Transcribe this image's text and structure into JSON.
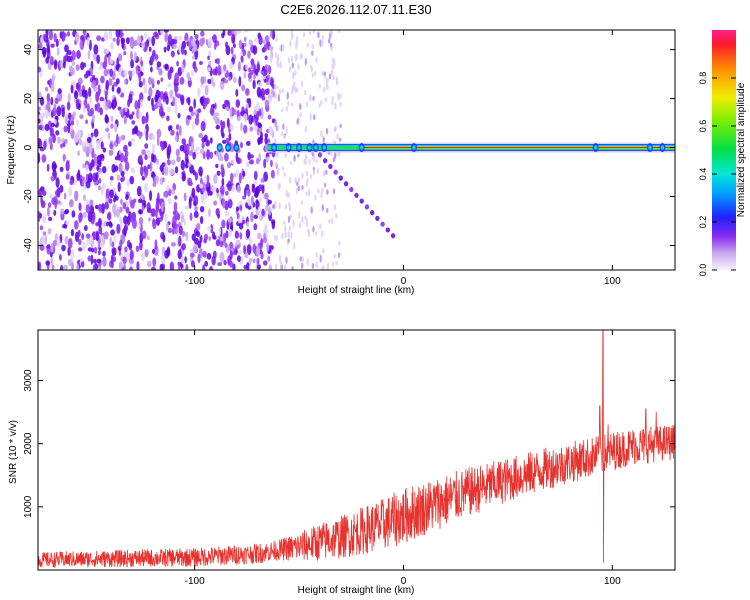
{
  "figure_title": "C2E6.2026.112.07.11.E30",
  "colors": {
    "snr_line": "#e8302c",
    "ridge_core": "#e02b1f",
    "noise_purple": "#6a10e8",
    "noise_light": "#c8a8f0"
  },
  "chart_data": [
    {
      "type": "heatmap",
      "title": "",
      "xlabel": "Height of straight line (km)",
      "ylabel": "Frequency (Hz)",
      "xlim": [
        -175,
        130
      ],
      "ylim": [
        -50,
        48
      ],
      "xticks": [
        -100,
        0,
        100
      ],
      "xtick_labels": [
        "-100",
        "0",
        "100"
      ],
      "yticks": [
        -40,
        -20,
        0,
        20,
        40
      ],
      "ytick_labels": [
        "-40",
        "-20",
        "0",
        "20",
        "40"
      ],
      "colorbar": {
        "label": "Normalized spectral amplitude",
        "range": [
          0,
          1
        ],
        "ticks": [
          0.0,
          0.2,
          0.4,
          0.6,
          0.8
        ],
        "tick_labels": [
          "0.0",
          "0.2",
          "0.4",
          "0.6",
          "0.8"
        ]
      },
      "features": [
        {
          "name": "broadband noise",
          "x_range": [
            -175,
            -62
          ],
          "freq_range": [
            -50,
            48
          ],
          "amplitude": 0.15
        },
        {
          "name": "sparse noise",
          "x_range": [
            -62,
            -30
          ],
          "freq_range": [
            -50,
            48
          ],
          "amplitude": 0.05
        },
        {
          "name": "zero-frequency ridge",
          "x_range": [
            -65,
            130
          ],
          "freq": 0,
          "amplitude": 0.95
        },
        {
          "name": "descending chirp",
          "x_start": -40,
          "freq_start": -3,
          "x_end": -5,
          "freq_end": -36,
          "amplitude": 0.12
        }
      ]
    },
    {
      "type": "line",
      "title": "",
      "xlabel": "Height of straight line (km)",
      "ylabel": "SNR (10 * v/v)",
      "xlim": [
        -175,
        130
      ],
      "ylim": [
        0,
        3800
      ],
      "xticks": [
        -100,
        0,
        100
      ],
      "xtick_labels": [
        "-100",
        "0",
        "100"
      ],
      "yticks": [
        1000,
        2000,
        3000
      ],
      "ytick_labels": [
        "1000",
        "2000",
        "3000"
      ],
      "trend": {
        "x": [
          -175,
          -100,
          -70,
          -50,
          -30,
          -10,
          10,
          30,
          50,
          70,
          90,
          100,
          110,
          130
        ],
        "y": [
          160,
          200,
          260,
          370,
          520,
          720,
          980,
          1220,
          1430,
          1620,
          1790,
          1880,
          1960,
          2030
        ]
      },
      "noise_amplitude": {
        "x": [
          -175,
          -60,
          -40,
          0,
          50,
          130
        ],
        "y": [
          120,
          160,
          300,
          450,
          350,
          280
        ]
      },
      "spikes": [
        {
          "x": 94,
          "y": 2600
        },
        {
          "x": 95.5,
          "y": 3800
        },
        {
          "x": 95.8,
          "y": 120
        },
        {
          "x": 98,
          "y": 2300
        },
        {
          "x": 116,
          "y": 2550
        },
        {
          "x": 121,
          "y": 2500
        }
      ]
    }
  ]
}
